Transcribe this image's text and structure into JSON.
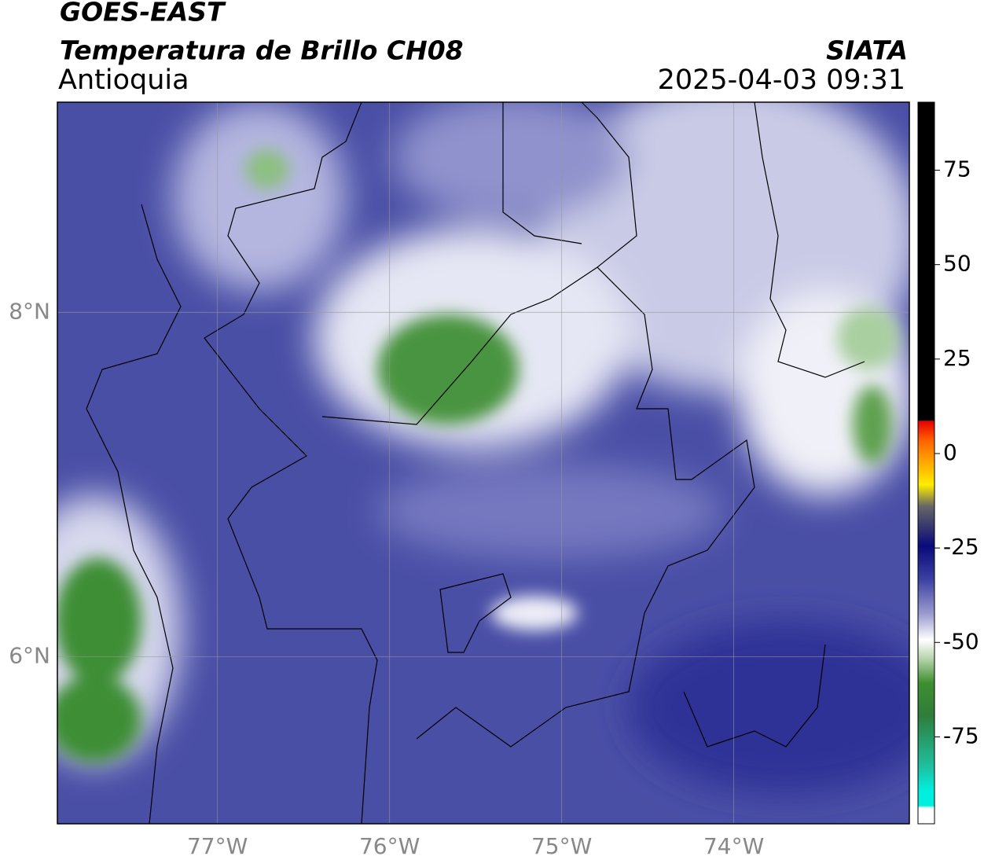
{
  "header": {
    "line1": "GOES-EAST",
    "title": "Temperatura de Brillo CH08",
    "agency": "SIATA",
    "region": "Antioquia",
    "datetime": "2025-04-03 09:31"
  },
  "map": {
    "xlim": [
      -77.93,
      -72.98
    ],
    "ylim": [
      5.03,
      9.22
    ],
    "xticks": [
      {
        "value": -77,
        "label": "77°W"
      },
      {
        "value": -76,
        "label": "76°W"
      },
      {
        "value": -75,
        "label": "75°W"
      },
      {
        "value": -74,
        "label": "74°W"
      }
    ],
    "yticks": [
      {
        "value": 8,
        "label": "8°N"
      },
      {
        "value": 6,
        "label": "6°N"
      }
    ],
    "grid": true
  },
  "colorbar": {
    "lim": [
      -98,
      93
    ],
    "ticks": [
      75,
      50,
      25,
      0,
      -25,
      -50,
      -75
    ]
  }
}
